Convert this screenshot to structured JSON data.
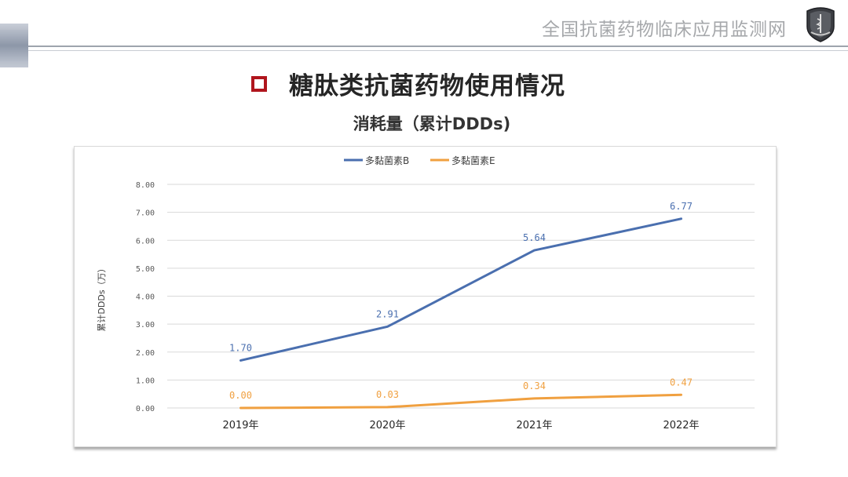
{
  "header": {
    "site_title": "全国抗菌药物临床应用监测网",
    "logo_icon": "shield-emblem-icon"
  },
  "page": {
    "title": "糖肽类抗菌药物使用情况",
    "bullet_color": "#b0151d"
  },
  "chart_data": {
    "type": "line",
    "title": "消耗量（累计DDDs)",
    "xlabel": "",
    "ylabel": "累计DDDs（万）",
    "categories": [
      "2019年",
      "2020年",
      "2021年",
      "2022年"
    ],
    "ylim": [
      0,
      8
    ],
    "yticks": [
      "0.00",
      "1.00",
      "2.00",
      "3.00",
      "4.00",
      "5.00",
      "6.00",
      "7.00",
      "8.00"
    ],
    "grid": true,
    "legend_position": "top",
    "series": [
      {
        "name": "多黏菌素B",
        "color": "#4a6faf",
        "values": [
          1.7,
          2.91,
          5.64,
          6.77
        ],
        "labels": [
          "1.70",
          "2.91",
          "5.64",
          "6.77"
        ]
      },
      {
        "name": "多黏菌素E",
        "color": "#f0a040",
        "values": [
          0.0,
          0.03,
          0.34,
          0.47
        ],
        "labels": [
          "0.00",
          "0.03",
          "0.34",
          "0.47"
        ]
      }
    ]
  }
}
